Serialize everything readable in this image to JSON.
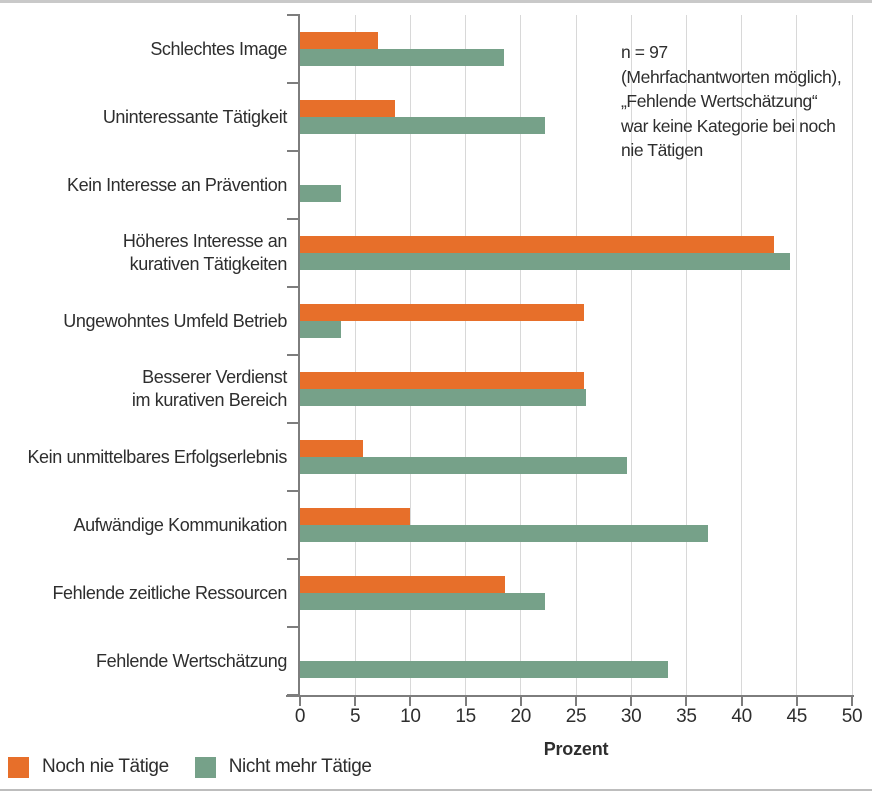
{
  "colors": {
    "noch_nie_orange": "#e76f2a",
    "nicht_mehr_green": "#76a189",
    "axis_gray": "#7d7d7d",
    "grid_gray": "#d8d8d8",
    "text": "#2e2e2e"
  },
  "annotation": {
    "lines": [
      "n = 97",
      "(Mehrfachantworten möglich),",
      "„Fehlende Wertschätzung“",
      "war keine Kategorie bei noch",
      "nie Tätigen"
    ]
  },
  "legend": {
    "items": [
      {
        "label": "Noch nie Tätige"
      },
      {
        "label": "Nicht mehr Tätige"
      }
    ]
  },
  "chart_data": {
    "type": "bar",
    "orientation": "horizontal",
    "title": "",
    "xlabel": "Prozent",
    "ylabel": "",
    "xlim": [
      0,
      50
    ],
    "xticks": [
      0,
      5,
      10,
      15,
      20,
      25,
      30,
      35,
      40,
      45,
      50
    ],
    "grid": true,
    "legend_position": "bottom-left",
    "annotation_text": "n = 97 (Mehrfachantworten möglich), „Fehlende Wertschätzung“ war keine Kategorie bei noch nie Tätigen",
    "categories": [
      "Schlechtes Image",
      "Uninteressante Tätigkeit",
      "Kein Interesse an Prävention",
      "Höheres Interesse an\nkurativen Tätigkeiten",
      "Ungewohntes Umfeld Betrieb",
      "Besserer Verdienst\nim kurativen Bereich",
      "Kein unmittelbares Erfolgserlebnis",
      "Aufwändige Kommunikation",
      "Fehlende zeitliche Ressourcen",
      "Fehlende Wertschätzung"
    ],
    "series": [
      {
        "name": "Noch nie Tätige",
        "color": "#e76f2a",
        "values": [
          7.1,
          8.6,
          0,
          42.9,
          25.7,
          25.7,
          5.7,
          10.0,
          18.6,
          null
        ]
      },
      {
        "name": "Nicht mehr Tätige",
        "color": "#76a189",
        "values": [
          18.5,
          22.2,
          3.7,
          44.4,
          3.7,
          25.9,
          29.6,
          37.0,
          22.2,
          33.3
        ]
      }
    ]
  }
}
